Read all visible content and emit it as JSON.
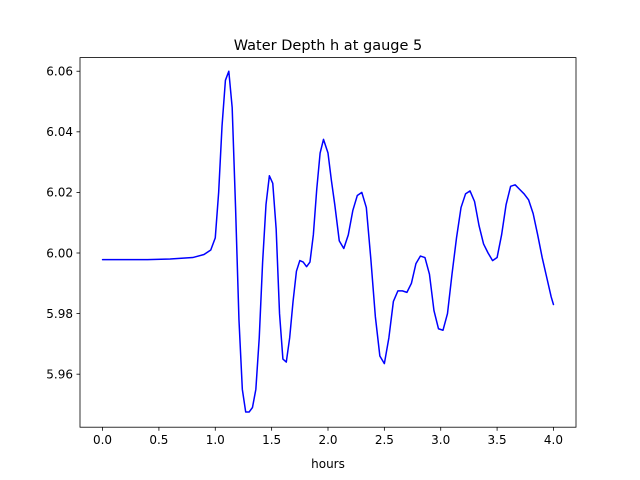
{
  "chart_data": {
    "type": "line",
    "title": "Water Depth h at gauge 5",
    "xlabel": "hours",
    "ylabel": "",
    "xlim": [
      -0.2,
      4.2
    ],
    "ylim": [
      5.9425,
      6.0645
    ],
    "xticks": [
      0.0,
      0.5,
      1.0,
      1.5,
      2.0,
      2.5,
      3.0,
      3.5,
      4.0
    ],
    "xtick_labels": [
      "0.0",
      "0.5",
      "1.0",
      "1.5",
      "2.0",
      "2.5",
      "3.0",
      "3.5",
      "4.0"
    ],
    "yticks": [
      5.96,
      5.98,
      6.0,
      6.02,
      6.04,
      6.06
    ],
    "ytick_labels": [
      "5.96",
      "5.98",
      "6.00",
      "6.02",
      "6.04",
      "6.06"
    ],
    "grid": false,
    "legend": "none",
    "series": [
      {
        "color": "#0000ff",
        "x": [
          0.0,
          0.2,
          0.4,
          0.6,
          0.8,
          0.9,
          0.96,
          1.0,
          1.03,
          1.06,
          1.09,
          1.12,
          1.15,
          1.18,
          1.21,
          1.24,
          1.27,
          1.3,
          1.33,
          1.36,
          1.39,
          1.42,
          1.45,
          1.48,
          1.51,
          1.54,
          1.57,
          1.6,
          1.63,
          1.66,
          1.69,
          1.72,
          1.75,
          1.78,
          1.81,
          1.84,
          1.87,
          1.9,
          1.93,
          1.96,
          2.0,
          2.03,
          2.06,
          2.1,
          2.14,
          2.18,
          2.22,
          2.26,
          2.3,
          2.34,
          2.38,
          2.42,
          2.46,
          2.5,
          2.54,
          2.58,
          2.62,
          2.66,
          2.7,
          2.74,
          2.78,
          2.82,
          2.86,
          2.9,
          2.94,
          2.98,
          3.02,
          3.06,
          3.1,
          3.14,
          3.18,
          3.22,
          3.26,
          3.3,
          3.34,
          3.38,
          3.42,
          3.46,
          3.5,
          3.54,
          3.58,
          3.62,
          3.66,
          3.7,
          3.74,
          3.78,
          3.82,
          3.86,
          3.9,
          3.94,
          3.98,
          4.0
        ],
        "y": [
          5.9978,
          5.9978,
          5.9978,
          5.998,
          5.9985,
          5.9995,
          6.001,
          6.005,
          6.02,
          6.042,
          6.057,
          6.06,
          6.048,
          6.015,
          5.978,
          5.955,
          5.9475,
          5.9475,
          5.949,
          5.955,
          5.972,
          5.997,
          6.016,
          6.0255,
          6.023,
          6.008,
          5.98,
          5.965,
          5.964,
          5.972,
          5.984,
          5.994,
          5.9975,
          5.997,
          5.9955,
          5.997,
          6.006,
          6.021,
          6.033,
          6.0375,
          6.033,
          6.024,
          6.016,
          6.004,
          6.0015,
          6.006,
          6.014,
          6.019,
          6.02,
          6.015,
          5.998,
          5.979,
          5.966,
          5.9635,
          5.972,
          5.984,
          5.9875,
          5.9875,
          5.987,
          5.99,
          5.9965,
          5.999,
          5.9985,
          5.993,
          5.981,
          5.975,
          5.9745,
          5.98,
          5.993,
          6.005,
          6.015,
          6.0195,
          6.0205,
          6.017,
          6.009,
          6.003,
          6.0,
          5.9975,
          5.9985,
          6.006,
          6.016,
          6.022,
          6.0225,
          6.021,
          6.0195,
          6.0175,
          6.013,
          6.006,
          5.9985,
          5.992,
          5.9855,
          5.983
        ]
      }
    ]
  }
}
